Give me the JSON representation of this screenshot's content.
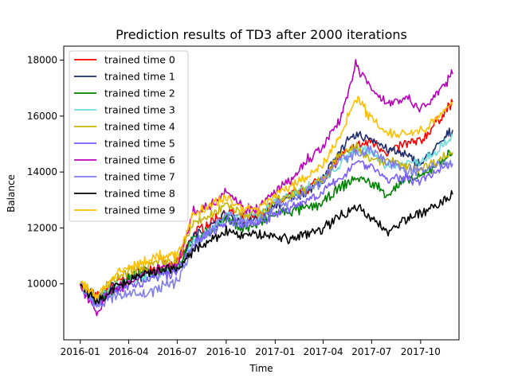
{
  "chart_data": {
    "type": "line",
    "title": "Prediction results of TD3 after 2000 iterations",
    "xlabel": "Time",
    "ylabel": "Balance",
    "x_range": [
      "2015-12-01",
      "2017-12-12"
    ],
    "ylim": [
      8000,
      18500
    ],
    "x_ticks": [
      "2016-01",
      "2016-04",
      "2016-07",
      "2016-10",
      "2017-01",
      "2017-04",
      "2017-07",
      "2017-10"
    ],
    "y_ticks": [
      10000,
      12000,
      14000,
      16000,
      18000
    ],
    "y_tick_labels": [
      "10000",
      "12000",
      "14000",
      "16000",
      "18000"
    ],
    "grid": false,
    "legend_position": "upper-left",
    "x": [
      "2016-01-01",
      "2016-02-01",
      "2016-03-01",
      "2016-04-01",
      "2016-05-01",
      "2016-06-01",
      "2016-07-01",
      "2016-08-01",
      "2016-09-01",
      "2016-10-01",
      "2016-11-01",
      "2016-12-01",
      "2017-01-01",
      "2017-02-01",
      "2017-03-01",
      "2017-04-01",
      "2017-05-01",
      "2017-06-01",
      "2017-07-01",
      "2017-08-01",
      "2017-09-01",
      "2017-10-01",
      "2017-11-01",
      "2017-11-30"
    ],
    "series": [
      {
        "name": "trained time 0",
        "color": "#ff0000",
        "values": [
          10000,
          9500,
          10000,
          10200,
          10500,
          10600,
          10700,
          11800,
          12200,
          12600,
          12300,
          12400,
          12900,
          13200,
          13400,
          13800,
          14500,
          14900,
          15100,
          14700,
          15000,
          15100,
          15800,
          16500
        ]
      },
      {
        "name": "trained time 1",
        "color": "#1f2c6b",
        "values": [
          10000,
          9400,
          9900,
          10100,
          10300,
          10500,
          10600,
          11700,
          12000,
          12500,
          12200,
          12300,
          12800,
          13100,
          13300,
          13700,
          14800,
          15300,
          15200,
          14800,
          14600,
          14300,
          14900,
          15500
        ]
      },
      {
        "name": "trained time 2",
        "color": "#008000",
        "values": [
          10000,
          9300,
          9800,
          10200,
          10400,
          10500,
          10600,
          11600,
          11900,
          12300,
          12000,
          12100,
          12500,
          12600,
          12700,
          12900,
          13400,
          13800,
          13600,
          13200,
          13700,
          13800,
          14300,
          14700
        ]
      },
      {
        "name": "trained time 3",
        "color": "#6fdcdc",
        "values": [
          10000,
          9400,
          9900,
          10100,
          10300,
          10400,
          10500,
          11500,
          11900,
          12500,
          12400,
          12500,
          13000,
          13200,
          13400,
          13700,
          14200,
          14800,
          14700,
          14200,
          14300,
          14400,
          14800,
          15300
        ]
      },
      {
        "name": "trained time 4",
        "color": "#c8b400",
        "values": [
          10000,
          9500,
          10100,
          10400,
          10600,
          10800,
          10800,
          12200,
          12400,
          12900,
          12500,
          12500,
          12900,
          13200,
          13400,
          13700,
          14600,
          14900,
          14500,
          14400,
          14200,
          14100,
          14400,
          14700
        ]
      },
      {
        "name": "trained time 5",
        "color": "#7b5cff",
        "values": [
          10000,
          9300,
          9700,
          9900,
          10100,
          10300,
          10400,
          11400,
          11800,
          12200,
          12100,
          12200,
          12500,
          12700,
          13000,
          13300,
          13700,
          14400,
          14200,
          13700,
          13800,
          13700,
          14000,
          14300
        ]
      },
      {
        "name": "trained time 6",
        "color": "#bb00bb",
        "values": [
          10000,
          9000,
          9800,
          10000,
          10300,
          10600,
          10700,
          12600,
          12800,
          13400,
          12700,
          12700,
          13300,
          13700,
          14400,
          14900,
          15800,
          17800,
          17000,
          16400,
          16700,
          16200,
          16800,
          17500
        ]
      },
      {
        "name": "trained time 7",
        "color": "#7e7eee",
        "values": [
          10000,
          9200,
          9500,
          9700,
          9600,
          9900,
          10100,
          11400,
          11900,
          12500,
          12200,
          12300,
          12800,
          13000,
          13300,
          13700,
          14400,
          14700,
          14800,
          14300,
          14100,
          14000,
          14300,
          14300
        ]
      },
      {
        "name": "trained time 8",
        "color": "#000000",
        "values": [
          10000,
          9300,
          9800,
          10100,
          10300,
          10500,
          10500,
          11200,
          11500,
          11900,
          11700,
          11800,
          11700,
          11600,
          11800,
          12000,
          12400,
          12800,
          12300,
          11900,
          12300,
          12500,
          12800,
          13200
        ]
      },
      {
        "name": "trained time 9",
        "color": "#ffbf00",
        "values": [
          10000,
          9600,
          10200,
          10600,
          10800,
          11000,
          11000,
          12500,
          12800,
          13100,
          12700,
          12700,
          13200,
          13500,
          13800,
          14300,
          15200,
          16700,
          15900,
          15400,
          15400,
          15500,
          15900,
          16400
        ]
      }
    ]
  }
}
